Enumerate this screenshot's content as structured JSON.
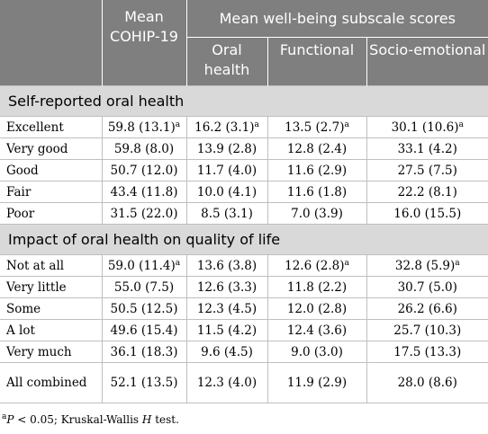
{
  "header": {
    "mean_cohip": "Mean COHIP-19",
    "group": "Mean well-being subscale scores",
    "sub": [
      "Oral health",
      "Functional",
      "Socio-emotional"
    ]
  },
  "sections": [
    {
      "title": "Self-reported oral health",
      "rows": [
        {
          "label": "Excellent",
          "cells": [
            {
              "v": "59.8 (13.1)",
              "sup": "a"
            },
            {
              "v": "16.2 (3.1)",
              "sup": "a"
            },
            {
              "v": "13.5 (2.7)",
              "sup": "a"
            },
            {
              "v": "30.1 (10.6)",
              "sup": "a"
            }
          ]
        },
        {
          "label": "Very good",
          "cells": [
            {
              "v": "59.8 (8.0)"
            },
            {
              "v": "13.9 (2.8)"
            },
            {
              "v": "12.8 (2.4)"
            },
            {
              "v": "33.1 (4.2)"
            }
          ]
        },
        {
          "label": "Good",
          "cells": [
            {
              "v": "50.7 (12.0)"
            },
            {
              "v": "11.7 (4.0)"
            },
            {
              "v": "11.6 (2.9)"
            },
            {
              "v": "27.5 (7.5)"
            }
          ]
        },
        {
          "label": "Fair",
          "cells": [
            {
              "v": "43.4 (11.8)"
            },
            {
              "v": "10.0 (4.1)"
            },
            {
              "v": "11.6 (1.8)"
            },
            {
              "v": "22.2 (8.1)"
            }
          ]
        },
        {
          "label": "Poor",
          "cells": [
            {
              "v": "31.5 (22.0)"
            },
            {
              "v": "8.5 (3.1)"
            },
            {
              "v": "7.0 (3.9)"
            },
            {
              "v": "16.0 (15.5)"
            }
          ]
        }
      ]
    },
    {
      "title": "Impact of oral health on quality of life",
      "rows": [
        {
          "label": "Not at all",
          "cells": [
            {
              "v": "59.0 (11.4)",
              "sup": "a"
            },
            {
              "v": "13.6 (3.8)"
            },
            {
              "v": "12.6 (2.8)",
              "sup": "a"
            },
            {
              "v": "32.8 (5.9)",
              "sup": "a"
            }
          ]
        },
        {
          "label": "Very little",
          "cells": [
            {
              "v": "55.0 (7.5)"
            },
            {
              "v": "12.6 (3.3)"
            },
            {
              "v": "11.8 (2.2)"
            },
            {
              "v": "30.7 (5.0)"
            }
          ]
        },
        {
          "label": "Some",
          "cells": [
            {
              "v": "50.5 (12.5)"
            },
            {
              "v": "12.3 (4.5)"
            },
            {
              "v": "12.0 (2.8)"
            },
            {
              "v": "26.2 (6.6)"
            }
          ]
        },
        {
          "label": "A lot",
          "cells": [
            {
              "v": "49.6 (15.4)"
            },
            {
              "v": "11.5 (4.2)"
            },
            {
              "v": "12.4 (3.6)"
            },
            {
              "v": "25.7 (10.3)"
            }
          ]
        },
        {
          "label": "Very much",
          "cells": [
            {
              "v": "36.1 (18.3)"
            },
            {
              "v": "9.6 (4.5)"
            },
            {
              "v": "9.0 (3.0)"
            },
            {
              "v": "17.5 (13.3)"
            }
          ]
        },
        {
          "label": "All combined",
          "tall": true,
          "cells": [
            {
              "v": "52.1 (13.5)"
            },
            {
              "v": "12.3 (4.0)"
            },
            {
              "v": "11.9 (2.9)"
            },
            {
              "v": "28.0 (8.6)"
            }
          ]
        }
      ]
    }
  ],
  "footnote": {
    "mark": "a",
    "p": "P",
    "threshold": " < 0.05; Kruskal-Wallis ",
    "h": "H",
    "tail": " test."
  }
}
